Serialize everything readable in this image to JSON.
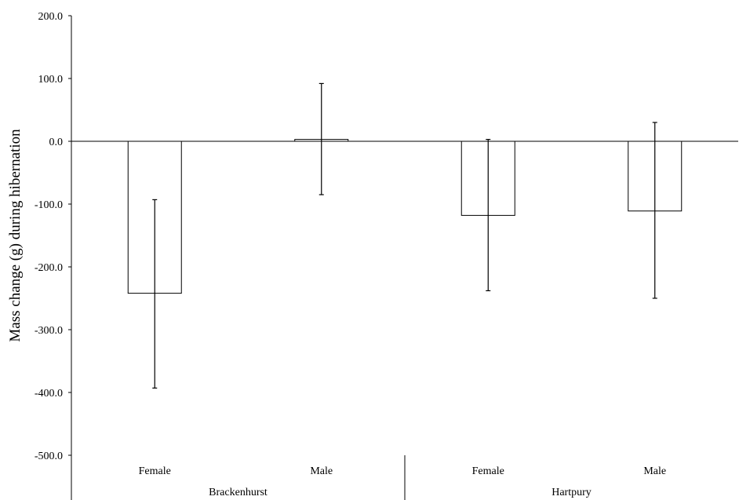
{
  "chart_data": {
    "type": "bar",
    "ylabel": "Mass change (g) during hibernation",
    "xlabel": "",
    "ylim": [
      -500,
      200
    ],
    "yticks": [
      200,
      100,
      0,
      -100,
      -200,
      -300,
      -400,
      -500
    ],
    "ytick_labels": [
      "200.0",
      "100.0",
      "0.0",
      "-100.0",
      "-200.0",
      "-300.0",
      "-400.0",
      "-500.0"
    ],
    "groups": [
      {
        "name": "Brackenhurst",
        "categories": [
          "Female",
          "Male"
        ]
      },
      {
        "name": "Hartpury",
        "categories": [
          "Female",
          "Male"
        ]
      }
    ],
    "categories": [
      "Female",
      "Male",
      "Female",
      "Male"
    ],
    "values": [
      -242,
      3,
      -118,
      -111
    ],
    "error_upper": [
      -93,
      92,
      3,
      30
    ],
    "error_lower": [
      -393,
      -85,
      -238,
      -250
    ],
    "grid": false,
    "legend": "none",
    "bar_color": "#ffffff",
    "bar_edge_color": "#000000"
  }
}
